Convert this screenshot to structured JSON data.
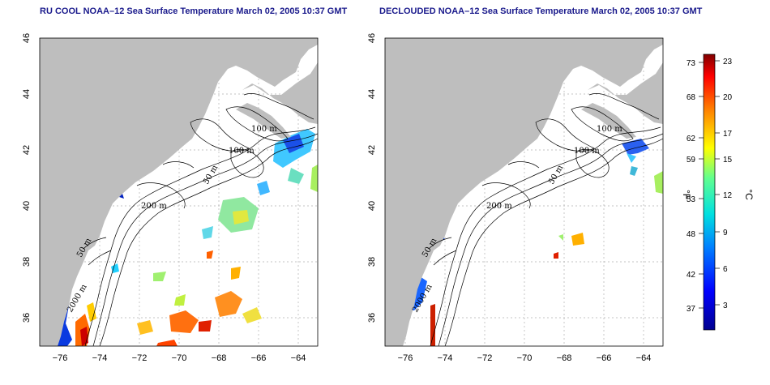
{
  "titles": {
    "left": "RU COOL NOAA–12 Sea Surface Temperature March 02, 2005 10:37 GMT",
    "right": "DECLOUDED NOAA–12 Sea Surface Temperature March 02, 2005 10:37 GMT"
  },
  "axes": {
    "x_ticks": [
      "−76",
      "−74",
      "−72",
      "−70",
      "−68",
      "−66",
      "−64"
    ],
    "y_ticks": [
      "36",
      "38",
      "40",
      "42",
      "44",
      "46"
    ],
    "lon_range": [
      -77,
      -63
    ],
    "lat_range": [
      35,
      46
    ]
  },
  "contour_labels": [
    "100 m",
    "100 m",
    "50 m",
    "200 m",
    "50 m",
    "2000 m"
  ],
  "colorbar": {
    "fahrenheit_ticks": [
      "73",
      "68",
      "62",
      "59",
      "53",
      "48",
      "42",
      "37"
    ],
    "celsius_ticks": [
      "23",
      "20",
      "17",
      "15",
      "12",
      "9",
      "6",
      "3"
    ],
    "fahrenheit_unit": "°F",
    "celsius_unit": "°C"
  },
  "colors": {
    "land": "#bebebe",
    "title": "#1a1a8c",
    "cold": "#0000cc",
    "warm": "#cc0000"
  }
}
